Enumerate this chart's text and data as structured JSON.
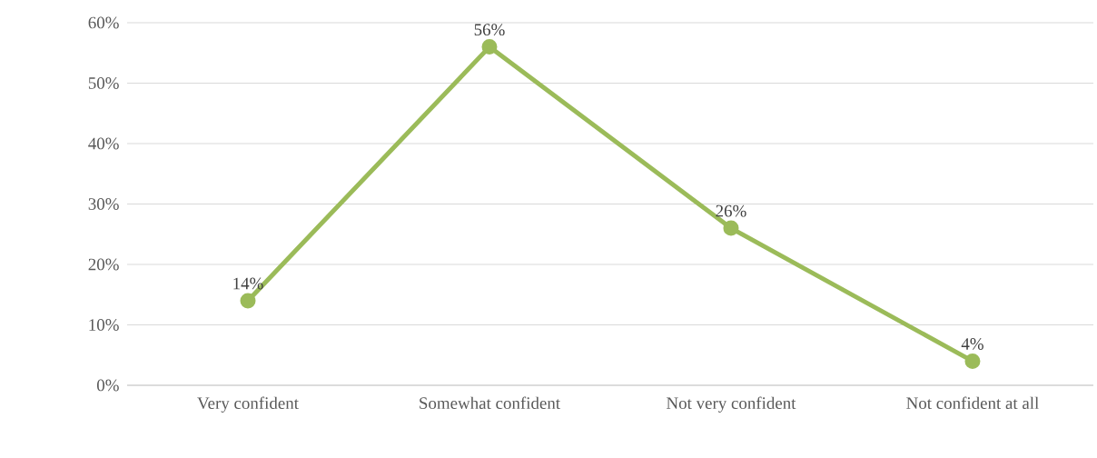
{
  "chart_data": {
    "type": "line",
    "categories": [
      "Very confident",
      "Somewhat confident",
      "Not very confident",
      "Not confident at all"
    ],
    "values": [
      14,
      56,
      26,
      4
    ],
    "value_labels": [
      "14%",
      "56%",
      "26%",
      "4%"
    ],
    "color": "#9bbb59",
    "marker": "circle",
    "ylim": [
      0,
      60
    ],
    "yticks": [
      {
        "value": 0,
        "label": "0%"
      },
      {
        "value": 10,
        "label": "10%"
      },
      {
        "value": 20,
        "label": "20%"
      },
      {
        "value": 30,
        "label": "30%"
      },
      {
        "value": 40,
        "label": "40%"
      },
      {
        "value": 50,
        "label": "50%"
      },
      {
        "value": 60,
        "label": "60%"
      }
    ],
    "grid": "y"
  }
}
